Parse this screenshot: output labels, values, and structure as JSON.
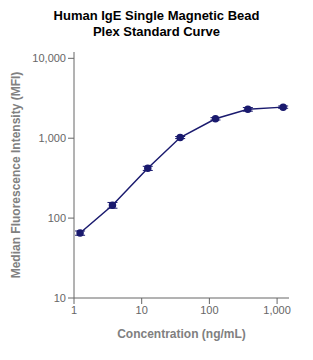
{
  "chart_data": {
    "type": "line",
    "title": "Human IgE Single Magnetic Bead\nPlex Standard Curve",
    "x_label": "Concentration (ng/mL)",
    "y_label": "Median Fluorescence Intensity (MFI)",
    "x": [
      1.23,
      3.7,
      12.3,
      37,
      123,
      370,
      1230
    ],
    "values": [
      65,
      145,
      420,
      1020,
      1750,
      2300,
      2450
    ],
    "yerr": [
      4,
      12,
      25,
      30,
      60,
      120,
      80
    ],
    "color": "#1a1a6e",
    "marker": "circle",
    "line_style": "solid",
    "log": true,
    "xlim": [
      1,
      1500
    ],
    "ylim": [
      10,
      12000
    ],
    "xticks": [
      1,
      10,
      100,
      {
        "value": 1000,
        "label": "1,000"
      }
    ],
    "yticks": [
      10,
      100,
      {
        "value": 1000,
        "label": "1,000"
      },
      {
        "value": 10000,
        "label": "10,000"
      }
    ],
    "grid": false,
    "legend": false
  }
}
